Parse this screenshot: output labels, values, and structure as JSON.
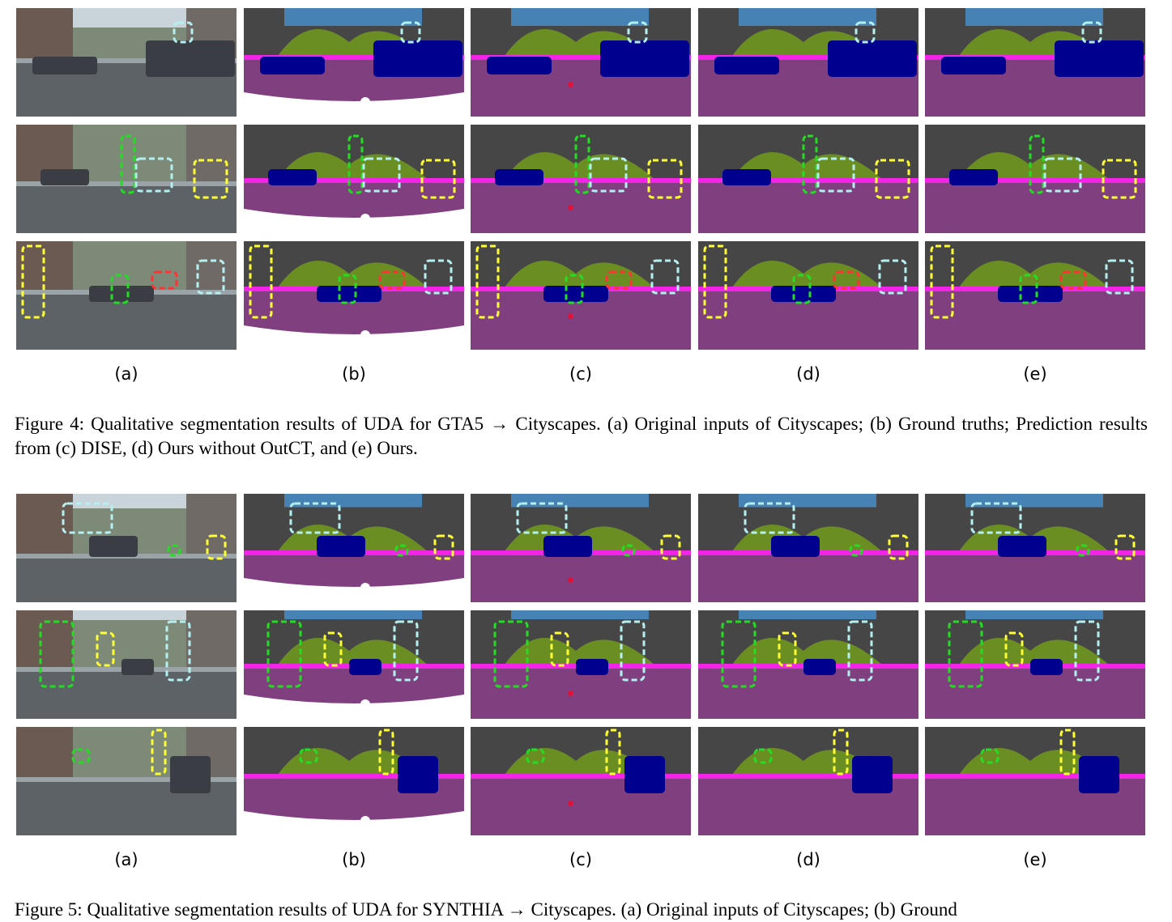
{
  "figures": [
    {
      "id": "fig4",
      "caption": "Figure 4: Qualitative segmentation results of UDA for GTA5 → Cityscapes. (a) Original inputs of Cityscapes; (b) Ground truths; Prediction results from (c) DISE, (d) Ours without OutCT, and (e) Ours.",
      "column_labels": [
        "(a)",
        "(b)",
        "(c)",
        "(d)",
        "(e)"
      ],
      "row_count": 3
    },
    {
      "id": "fig5",
      "caption": "Figure 5: Qualitative segmentation results of UDA for SYNTHIA → Cityscapes. (a) Original inputs of Cityscapes; (b) Ground",
      "column_labels": [
        "(a)",
        "(b)",
        "(c)",
        "(d)",
        "(e)"
      ],
      "row_count": 3
    }
  ],
  "class_colors": {
    "road": "#80407f",
    "sidewalk": "#f423e8",
    "building": "#464646",
    "vegetation": "#6b8e23",
    "sky": "#4682b4",
    "car": "#00008e",
    "person": "#dc143c",
    "rider": "#ff0000",
    "bicycle": "#770b20",
    "traffic_sign": "#dcdc00",
    "traffic_light": "#faaa1e",
    "terrain": "#98fb98",
    "pole": "#999999",
    "void": "#ffffff"
  },
  "highlight_colors": {
    "cyan": "#b4f0f0",
    "green": "#22dd22",
    "yellow": "#ffff33",
    "red": "#ff3333"
  }
}
